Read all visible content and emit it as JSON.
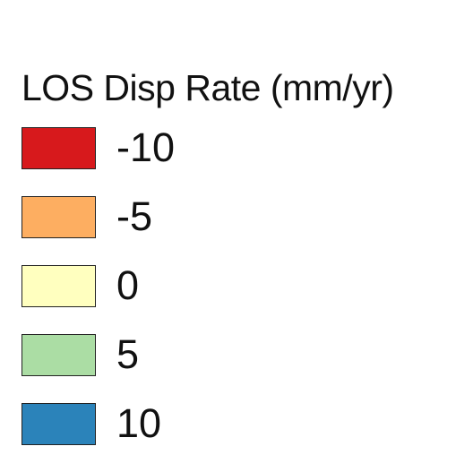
{
  "legend": {
    "title": "LOS Disp Rate (mm/yr)",
    "items": [
      {
        "label": "-10",
        "color": "#d7191c"
      },
      {
        "label": "-5",
        "color": "#fdae61"
      },
      {
        "label": "0",
        "color": "#ffffbf"
      },
      {
        "label": "5",
        "color": "#abdda4"
      },
      {
        "label": "10",
        "color": "#2b83ba"
      }
    ]
  }
}
